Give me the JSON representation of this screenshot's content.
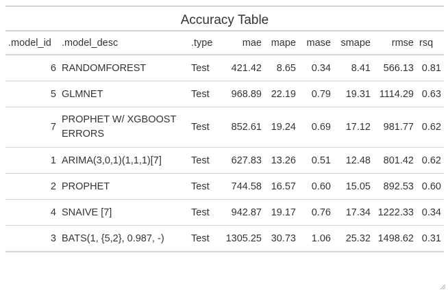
{
  "table": {
    "title": "Accuracy Table",
    "columns": [
      ".model_id",
      ".model_desc",
      ".type",
      "mae",
      "mape",
      "mase",
      "smape",
      "rmse",
      "rsq"
    ],
    "rows": [
      [
        "6",
        "RANDOMFOREST",
        "Test",
        "421.42",
        "8.65",
        "0.34",
        "8.41",
        "566.13",
        "0.81"
      ],
      [
        "5",
        "GLMNET",
        "Test",
        "968.89",
        "22.19",
        "0.79",
        "19.31",
        "1114.29",
        "0.63"
      ],
      [
        "7",
        "PROPHET W/ XGBOOST ERRORS",
        "Test",
        "852.61",
        "19.24",
        "0.69",
        "17.12",
        "981.77",
        "0.62"
      ],
      [
        "1",
        "ARIMA(3,0,1)(1,1,1)[7]",
        "Test",
        "627.83",
        "13.26",
        "0.51",
        "12.48",
        "801.42",
        "0.62"
      ],
      [
        "2",
        "PROPHET",
        "Test",
        "744.58",
        "16.57",
        "0.60",
        "15.05",
        "892.53",
        "0.60"
      ],
      [
        "4",
        "SNAIVE [7]",
        "Test",
        "942.87",
        "19.17",
        "0.76",
        "17.34",
        "1222.33",
        "0.34"
      ],
      [
        "3",
        "BATS(1, {5,2}, 0.987, -)",
        "Test",
        "1305.25",
        "30.73",
        "1.06",
        "25.32",
        "1498.62",
        "0.31"
      ]
    ]
  },
  "icons": {
    "resize_grip": "resize-grip-icon"
  },
  "colors": {
    "rule": "#d3d3d3",
    "text": "#333333"
  }
}
